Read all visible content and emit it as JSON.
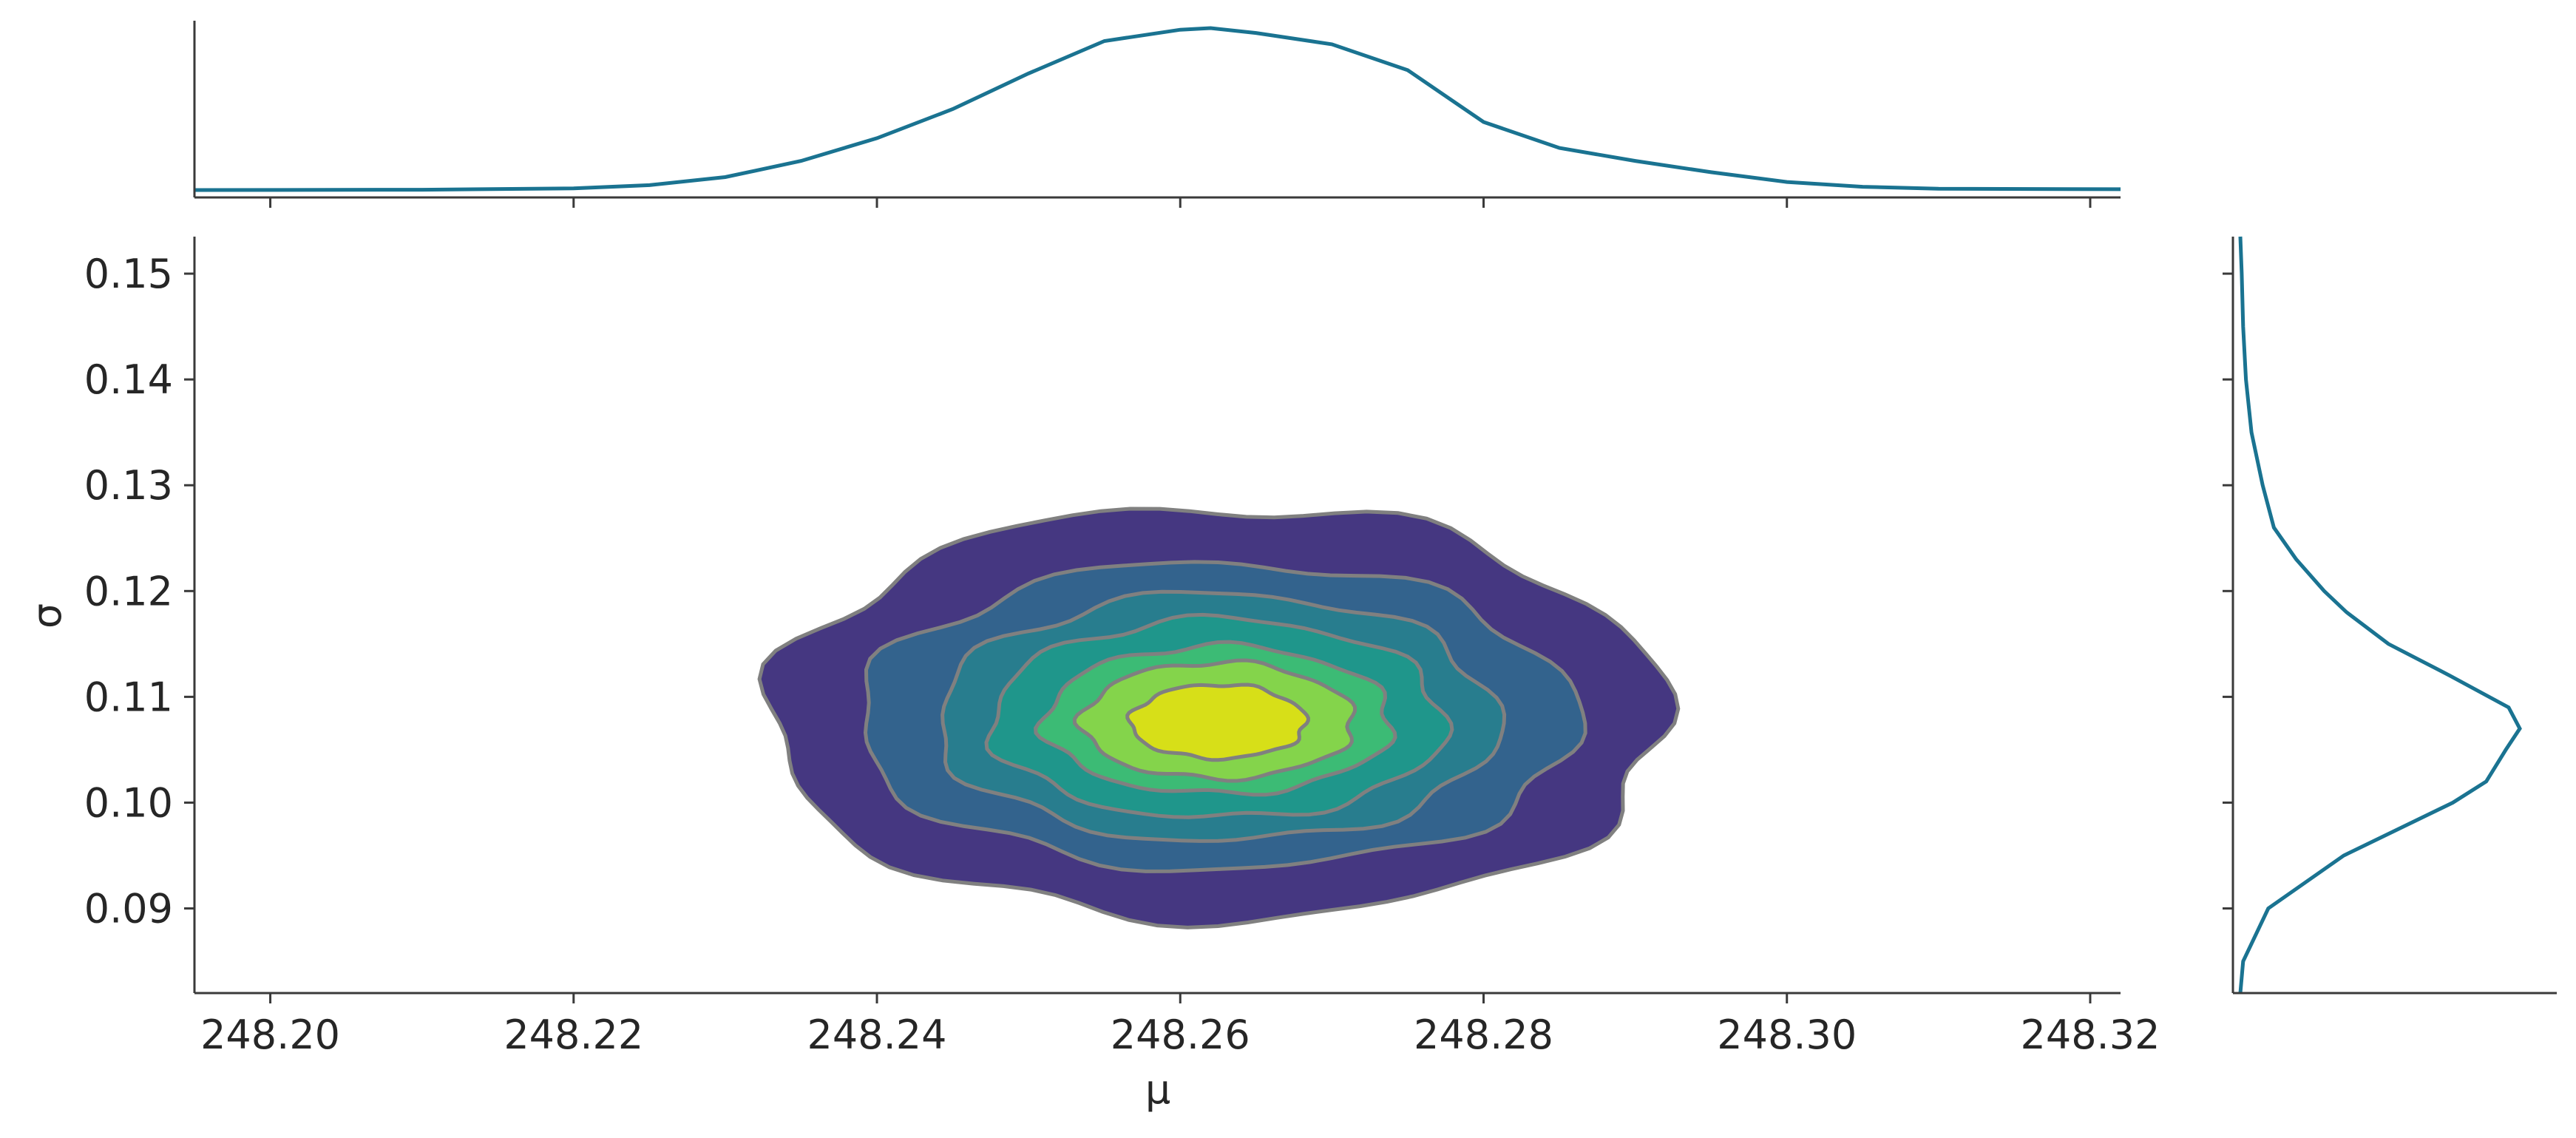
{
  "chart_data": {
    "type": "contour",
    "xlabel": "μ",
    "ylabel": "σ",
    "xlim": [
      248.195,
      248.322
    ],
    "ylim": [
      0.082,
      0.1535
    ],
    "x_ticks": [
      248.2,
      248.22,
      248.24,
      248.26,
      248.28,
      248.3,
      248.32
    ],
    "x_tick_labels": [
      "248.20",
      "248.22",
      "248.24",
      "248.26",
      "248.28",
      "248.30",
      "248.32"
    ],
    "y_ticks": [
      0.09,
      0.1,
      0.11,
      0.12,
      0.13,
      0.14,
      0.15
    ],
    "y_tick_labels": [
      "0.09",
      "0.10",
      "0.11",
      "0.12",
      "0.13",
      "0.14",
      "0.15"
    ],
    "joint_density": {
      "center": [
        248.2625,
        0.1075
      ],
      "contour_levels": [
        {
          "mu_halfwidth": 0.0295,
          "sigma_halfwidth": 0.0195,
          "color": "#453781"
        },
        {
          "mu_halfwidth": 0.0237,
          "sigma_halfwidth": 0.0145,
          "color": "#33638d"
        },
        {
          "mu_halfwidth": 0.0185,
          "sigma_halfwidth": 0.0117,
          "color": "#287d8e"
        },
        {
          "mu_halfwidth": 0.015,
          "sigma_halfwidth": 0.0094,
          "color": "#1f968b"
        },
        {
          "mu_halfwidth": 0.0115,
          "sigma_halfwidth": 0.007,
          "color": "#3cbb75"
        },
        {
          "mu_halfwidth": 0.009,
          "sigma_halfwidth": 0.0055,
          "color": "#84d44b"
        },
        {
          "mu_halfwidth": 0.0058,
          "sigma_halfwidth": 0.0035,
          "color": "#d7df18"
        }
      ],
      "contour_line_color": "#808080"
    },
    "marginal_mu": {
      "x": [
        248.195,
        248.21,
        248.22,
        248.225,
        248.23,
        248.235,
        248.24,
        248.245,
        248.25,
        248.255,
        248.26,
        248.262,
        248.265,
        248.27,
        248.275,
        248.28,
        248.285,
        248.29,
        248.295,
        248.3,
        248.305,
        248.31,
        248.322
      ],
      "density": [
        0.0,
        0.002,
        0.01,
        0.03,
        0.08,
        0.18,
        0.32,
        0.5,
        0.72,
        0.92,
        0.99,
        1.0,
        0.97,
        0.9,
        0.74,
        0.42,
        0.26,
        0.18,
        0.11,
        0.05,
        0.02,
        0.008,
        0.005
      ],
      "color": "#1a7391"
    },
    "marginal_sigma": {
      "y": [
        0.082,
        0.085,
        0.09,
        0.095,
        0.1,
        0.102,
        0.105,
        0.107,
        0.109,
        0.112,
        0.115,
        0.118,
        0.12,
        0.123,
        0.126,
        0.13,
        0.135,
        0.14,
        0.145,
        0.15,
        0.1535
      ],
      "density": [
        0.0,
        0.01,
        0.1,
        0.37,
        0.76,
        0.88,
        0.95,
        1.0,
        0.96,
        0.75,
        0.53,
        0.38,
        0.3,
        0.2,
        0.12,
        0.08,
        0.04,
        0.02,
        0.01,
        0.005,
        0.0
      ],
      "color": "#1a7391"
    },
    "grid": false
  }
}
